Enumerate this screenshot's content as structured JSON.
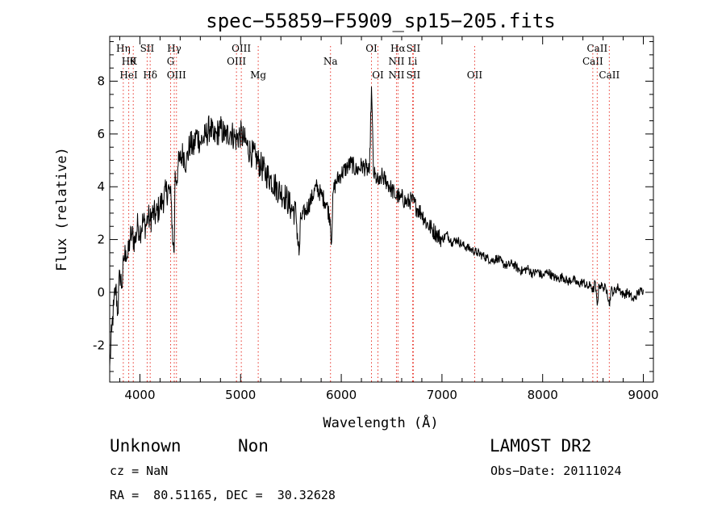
{
  "chart_data": {
    "type": "line",
    "title": "spec−55859−F5909_sp15−205.fits",
    "xlabel": "Wavelength (Å)",
    "ylabel": "Flux (relative)",
    "xlim": [
      3700,
      9100
    ],
    "ylim": [
      -3.4,
      9.7
    ],
    "xticks": [
      4000,
      5000,
      6000,
      7000,
      8000,
      9000
    ],
    "yticks": [
      -2,
      0,
      2,
      4,
      6,
      8
    ],
    "grid": false,
    "series": [
      {
        "x": [
          3700,
          3720,
          3740,
          3760,
          3780,
          3800,
          3820,
          3840,
          3860,
          3880,
          3900,
          3920,
          3950,
          3980,
          4000,
          4030,
          4060,
          4080,
          4100,
          4130,
          4160,
          4200,
          4230,
          4260,
          4290,
          4310,
          4330,
          4340,
          4350,
          4360,
          4380,
          4400,
          4430,
          4460,
          4500,
          4530,
          4560,
          4600,
          4650,
          4700,
          4730,
          4760,
          4800,
          4850,
          4900,
          4950,
          5000,
          5030,
          5060,
          5100,
          5150,
          5200,
          5250,
          5300,
          5350,
          5400,
          5450,
          5500,
          5550,
          5580,
          5600,
          5650,
          5700,
          5750,
          5800,
          5850,
          5890,
          5900,
          5920,
          5950,
          6000,
          6050,
          6100,
          6150,
          6200,
          6250,
          6280,
          6300,
          6320,
          6350,
          6380,
          6400,
          6450,
          6500,
          6550,
          6563,
          6580,
          6600,
          6650,
          6700,
          6750,
          6800,
          6850,
          6900,
          6950,
          7000,
          7050,
          7100,
          7150,
          7200,
          7250,
          7300,
          7350,
          7400,
          7450,
          7500,
          7550,
          7600,
          7650,
          7700,
          7750,
          7800,
          7850,
          7900,
          7950,
          8000,
          8050,
          8100,
          8150,
          8200,
          8250,
          8300,
          8350,
          8400,
          8450,
          8480,
          8500,
          8520,
          8542,
          8560,
          8600,
          8640,
          8662,
          8680,
          8700,
          8750,
          8800,
          8850,
          8900,
          8950,
          9000
        ],
        "y": [
          -2.8,
          -1.5,
          -0.5,
          0.2,
          -0.8,
          0.8,
          0.2,
          1.2,
          1.6,
          1.3,
          2.0,
          2.2,
          1.9,
          2.6,
          2.3,
          2.7,
          2.5,
          2.9,
          2.7,
          3.0,
          2.9,
          3.3,
          3.5,
          3.8,
          3.9,
          3.5,
          1.8,
          1.5,
          4.6,
          4.2,
          4.8,
          5.0,
          5.3,
          4.9,
          5.7,
          5.4,
          6.0,
          5.7,
          5.9,
          6.3,
          5.8,
          6.0,
          6.2,
          5.9,
          6.1,
          5.8,
          6.0,
          5.8,
          5.6,
          5.3,
          5.1,
          4.8,
          4.5,
          4.3,
          4.0,
          3.8,
          3.6,
          3.2,
          3.0,
          1.4,
          2.8,
          3.1,
          3.5,
          4.0,
          3.7,
          3.4,
          2.8,
          1.8,
          3.8,
          4.2,
          4.5,
          4.7,
          4.9,
          4.6,
          4.8,
          4.7,
          4.5,
          7.8,
          4.5,
          4.3,
          4.1,
          4.4,
          4.2,
          3.9,
          3.6,
          3.7,
          3.5,
          3.6,
          3.4,
          3.5,
          3.2,
          3.0,
          2.6,
          2.4,
          2.2,
          2.0,
          2.2,
          1.9,
          2.0,
          1.8,
          1.7,
          1.6,
          1.5,
          1.4,
          1.3,
          1.2,
          1.3,
          1.1,
          1.0,
          1.1,
          0.9,
          0.8,
          0.9,
          0.7,
          0.8,
          0.6,
          0.8,
          0.6,
          0.5,
          0.6,
          0.4,
          0.5,
          0.3,
          0.4,
          0.2,
          0.3,
          0.0,
          0.4,
          -0.5,
          0.3,
          0.2,
          0.1,
          -0.5,
          0.1,
          0.0,
          0.2,
          -0.1,
          0.0,
          -0.3,
          0.0,
          0.1
        ]
      }
    ],
    "line_markers": [
      {
        "wl": 3835,
        "row1": "Hη",
        "row2": "",
        "row3": ""
      },
      {
        "wl": 3889,
        "row1": "",
        "row2": "Hθ",
        "row3": "HeI"
      },
      {
        "wl": 3934,
        "row1": "",
        "row2": "K",
        "row3": ""
      },
      {
        "wl": 4072,
        "row1": "SII",
        "row2": "",
        "row3": ""
      },
      {
        "wl": 4102,
        "row1": "",
        "row2": "",
        "row3": "Hδ"
      },
      {
        "wl": 4305,
        "row1": "",
        "row2": "G",
        "row3": ""
      },
      {
        "wl": 4341,
        "row1": "Hγ",
        "row2": "",
        "row3": ""
      },
      {
        "wl": 4363,
        "row1": "",
        "row2": "",
        "row3": "OIII"
      },
      {
        "wl": 4959,
        "row1": "",
        "row2": "OIII",
        "row3": ""
      },
      {
        "wl": 5007,
        "row1": "OIII",
        "row2": "",
        "row3": ""
      },
      {
        "wl": 5175,
        "row1": "",
        "row2": "",
        "row3": "Mg"
      },
      {
        "wl": 5893,
        "row1": "",
        "row2": "Na",
        "row3": ""
      },
      {
        "wl": 6300,
        "row1": "OI",
        "row2": "",
        "row3": ""
      },
      {
        "wl": 6364,
        "row1": "",
        "row2": "",
        "row3": "OI"
      },
      {
        "wl": 6548,
        "row1": "",
        "row2": "NII",
        "row3": "NII"
      },
      {
        "wl": 6563,
        "row1": "Hα",
        "row2": "",
        "row3": ""
      },
      {
        "wl": 6708,
        "row1": "",
        "row2": "Li",
        "row3": ""
      },
      {
        "wl": 6716,
        "row1": "SII",
        "row2": "",
        "row3": "SII"
      },
      {
        "wl": 7325,
        "row1": "",
        "row2": "",
        "row3": "OII"
      },
      {
        "wl": 8498,
        "row1": "",
        "row2": "CaII",
        "row3": ""
      },
      {
        "wl": 8542,
        "row1": "CaII",
        "row2": "",
        "row3": ""
      },
      {
        "wl": 8662,
        "row1": "",
        "row2": "",
        "row3": "CaII"
      }
    ]
  },
  "info": {
    "class": "Unknown",
    "subclass": "Non",
    "survey": "LAMOST DR2",
    "cz": "cz = NaN",
    "obs_date": "Obs−Date: 20111024",
    "radec": "RA =  80.51165, DEC =  30.32628"
  }
}
